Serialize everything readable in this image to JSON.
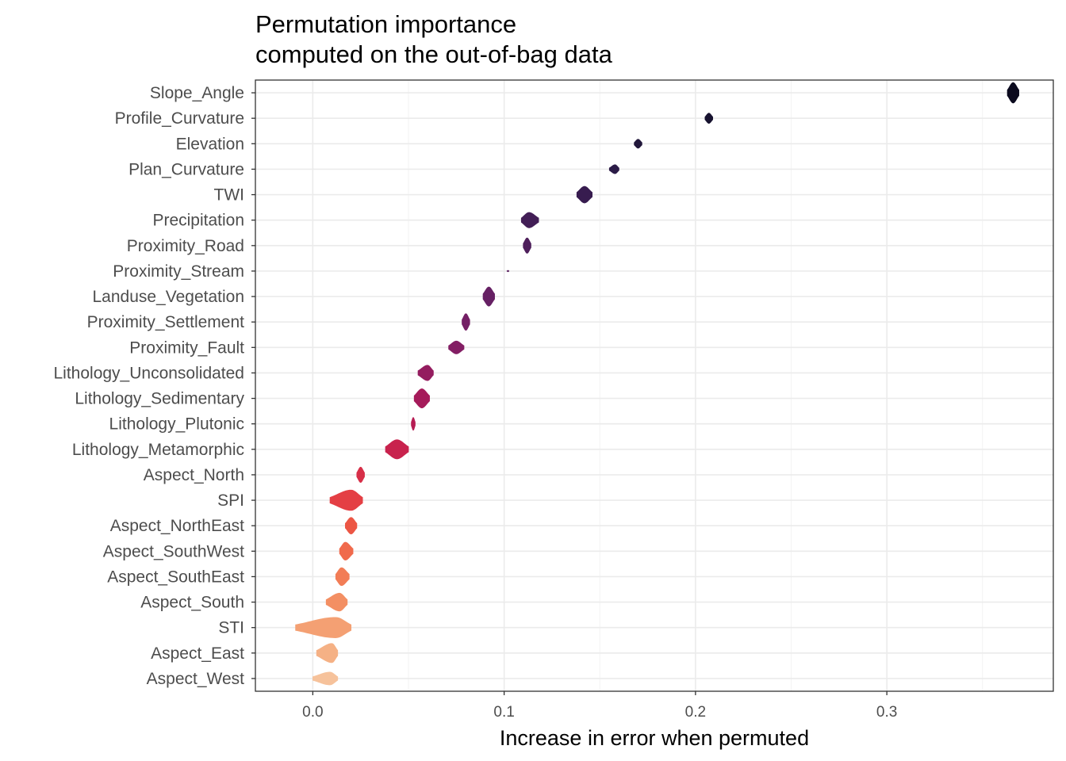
{
  "chart_data": {
    "type": "violin",
    "title": [
      "Permutation importance",
      "computed on the out-of-bag data"
    ],
    "xlabel": "Increase in error when permuted",
    "ylabel": "",
    "xlim": [
      -0.03,
      0.387
    ],
    "x_ticks": [
      0.0,
      0.1,
      0.2,
      0.3
    ],
    "x_tick_labels": [
      "0.0",
      "0.1",
      "0.2",
      "0.3"
    ],
    "grid": true,
    "legend": "none",
    "series": [
      {
        "name": "Slope_Angle",
        "center": 0.366,
        "min": 0.363,
        "max": 0.369,
        "width": 0.8,
        "color": "#0b0a1e"
      },
      {
        "name": "Profile_Curvature",
        "center": 0.207,
        "min": 0.205,
        "max": 0.209,
        "width": 0.4,
        "color": "#17122f"
      },
      {
        "name": "Elevation",
        "center": 0.17,
        "min": 0.168,
        "max": 0.172,
        "width": 0.35,
        "color": "#21173b"
      },
      {
        "name": "Plan_Curvature",
        "center": 0.158,
        "min": 0.155,
        "max": 0.16,
        "width": 0.35,
        "color": "#2b1b47"
      },
      {
        "name": "TWI",
        "center": 0.142,
        "min": 0.138,
        "max": 0.146,
        "width": 0.65,
        "color": "#371c4f"
      },
      {
        "name": "Precipitation",
        "center": 0.113,
        "min": 0.109,
        "max": 0.118,
        "width": 0.6,
        "color": "#421e56"
      },
      {
        "name": "Proximity_Road",
        "center": 0.112,
        "min": 0.11,
        "max": 0.114,
        "width": 0.6,
        "color": "#4e1f5b"
      },
      {
        "name": "Proximity_Stream",
        "center": 0.102,
        "min": 0.1015,
        "max": 0.1025,
        "width": 0.05,
        "color": "#5a2060"
      },
      {
        "name": "Landuse_Vegetation",
        "center": 0.092,
        "min": 0.089,
        "max": 0.095,
        "width": 0.75,
        "color": "#662064"
      },
      {
        "name": "Proximity_Settlement",
        "center": 0.08,
        "min": 0.078,
        "max": 0.082,
        "width": 0.65,
        "color": "#741f65"
      },
      {
        "name": "Proximity_Fault",
        "center": 0.075,
        "min": 0.071,
        "max": 0.079,
        "width": 0.5,
        "color": "#831e64"
      },
      {
        "name": "Lithology_Unconsolidated",
        "center": 0.06,
        "min": 0.055,
        "max": 0.063,
        "width": 0.6,
        "color": "#941c5f"
      },
      {
        "name": "Lithology_Sedimentary",
        "center": 0.057,
        "min": 0.053,
        "max": 0.061,
        "width": 0.75,
        "color": "#a51b5a"
      },
      {
        "name": "Lithology_Plutonic",
        "center": 0.0525,
        "min": 0.0515,
        "max": 0.0535,
        "width": 0.5,
        "color": "#b61c53"
      },
      {
        "name": "Lithology_Metamorphic",
        "center": 0.044,
        "min": 0.038,
        "max": 0.05,
        "width": 0.75,
        "color": "#c8224d"
      },
      {
        "name": "Aspect_North",
        "center": 0.025,
        "min": 0.023,
        "max": 0.027,
        "width": 0.6,
        "color": "#d72f48"
      },
      {
        "name": "SPI",
        "center": 0.02,
        "min": 0.009,
        "max": 0.026,
        "width": 0.8,
        "color": "#e43f44"
      },
      {
        "name": "Aspect_NorthEast",
        "center": 0.02,
        "min": 0.017,
        "max": 0.023,
        "width": 0.65,
        "color": "#ec5644"
      },
      {
        "name": "Aspect_SouthWest",
        "center": 0.017,
        "min": 0.014,
        "max": 0.021,
        "width": 0.7,
        "color": "#f06a4c"
      },
      {
        "name": "Aspect_SouthEast",
        "center": 0.015,
        "min": 0.012,
        "max": 0.019,
        "width": 0.7,
        "color": "#f27d56"
      },
      {
        "name": "Aspect_South",
        "center": 0.014,
        "min": 0.007,
        "max": 0.018,
        "width": 0.7,
        "color": "#f38f63"
      },
      {
        "name": "STI",
        "center": 0.012,
        "min": -0.009,
        "max": 0.02,
        "width": 0.8,
        "color": "#f4a073"
      },
      {
        "name": "Aspect_East",
        "center": 0.01,
        "min": 0.002,
        "max": 0.013,
        "width": 0.75,
        "color": "#f5b185"
      },
      {
        "name": "Aspect_West",
        "center": 0.009,
        "min": 0.0,
        "max": 0.013,
        "width": 0.5,
        "color": "#f6c29b"
      }
    ]
  }
}
